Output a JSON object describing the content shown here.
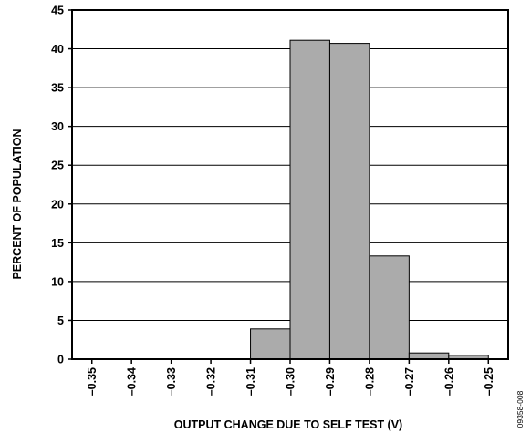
{
  "chart_data": {
    "type": "bar",
    "title": "",
    "xlabel": "OUTPUT CHANGE DUE TO SELF TEST (V)",
    "ylabel": "PERCENT OF POPULATION",
    "figure_id": "09358-008",
    "ylim": [
      0,
      45
    ],
    "yticks": [
      "0",
      "5",
      "10",
      "15",
      "20",
      "25",
      "30",
      "35",
      "40",
      "45"
    ],
    "xticks": [
      "–0.35",
      "–0.34",
      "–0.33",
      "–0.32",
      "–0.31",
      "–0.30",
      "–0.29",
      "–0.28",
      "–0.27",
      "–0.26",
      "–0.25"
    ],
    "bins": [
      {
        "from": -0.35,
        "to": -0.34,
        "value": 0
      },
      {
        "from": -0.34,
        "to": -0.33,
        "value": 0
      },
      {
        "from": -0.33,
        "to": -0.32,
        "value": 0
      },
      {
        "from": -0.32,
        "to": -0.31,
        "value": 0
      },
      {
        "from": -0.31,
        "to": -0.3,
        "value": 3.9
      },
      {
        "from": -0.3,
        "to": -0.29,
        "value": 41.1
      },
      {
        "from": -0.29,
        "to": -0.28,
        "value": 40.7
      },
      {
        "from": -0.28,
        "to": -0.27,
        "value": 13.3
      },
      {
        "from": -0.27,
        "to": -0.26,
        "value": 0.8
      },
      {
        "from": -0.26,
        "to": -0.25,
        "value": 0.5
      }
    ],
    "grid": true,
    "legend": "none",
    "colors": {
      "bar_fill": "#ababab",
      "bar_stroke": "#000000",
      "grid": "#000000",
      "axis": "#000000"
    }
  }
}
